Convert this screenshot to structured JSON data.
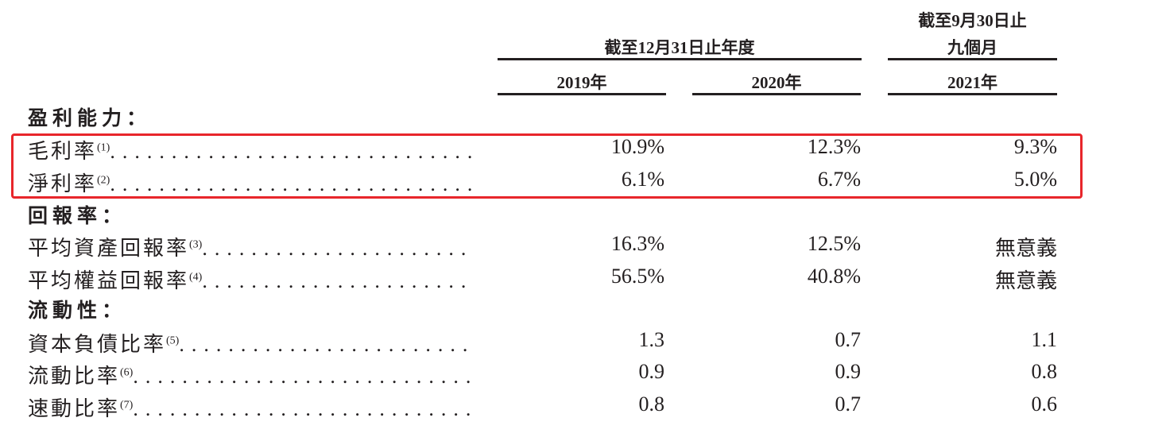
{
  "header": {
    "group1": "截至12月31日止年度",
    "group2_line1": "截至9月30日止",
    "group2_line2": "九個月",
    "years": [
      "2019年",
      "2020年",
      "2021年"
    ]
  },
  "sections": [
    {
      "title": "盈利能力：",
      "rows": [
        {
          "label": "毛利率",
          "note": "(1)",
          "values": [
            "10.9%",
            "12.3%",
            "9.3%"
          ]
        },
        {
          "label": "淨利率",
          "note": "(2)",
          "values": [
            "6.1%",
            "6.7%",
            "5.0%"
          ]
        }
      ]
    },
    {
      "title": "回報率：",
      "rows": [
        {
          "label": "平均資產回報率",
          "note": "(3)",
          "values": [
            "16.3%",
            "12.5%",
            "無意義"
          ]
        },
        {
          "label": "平均權益回報率",
          "note": "(4)",
          "values": [
            "56.5%",
            "40.8%",
            "無意義"
          ]
        }
      ]
    },
    {
      "title": "流動性：",
      "rows": [
        {
          "label": "資本負債比率",
          "note": "(5)",
          "values": [
            "1.3",
            "0.7",
            "1.1"
          ]
        },
        {
          "label": "流動比率",
          "note": "(6)",
          "values": [
            "0.9",
            "0.9",
            "0.8"
          ]
        },
        {
          "label": "速動比率",
          "note": "(7)",
          "values": [
            "0.8",
            "0.7",
            "0.6"
          ]
        }
      ]
    }
  ],
  "highlight_color": "#e8262b"
}
